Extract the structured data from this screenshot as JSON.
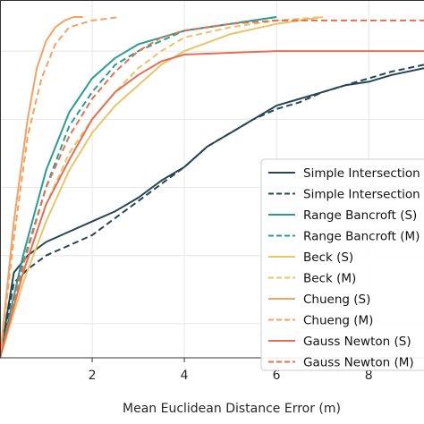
{
  "chart_data": {
    "type": "line",
    "title": "",
    "xlabel": "Mean Euclidean Distance Error (m)",
    "ylabel": "",
    "xlim": [
      0,
      9.2
    ],
    "ylim": [
      0,
      1.05
    ],
    "xticks": [
      2,
      4,
      6,
      8
    ],
    "grid": true,
    "legend_placement": "right",
    "series": [
      {
        "name": "Simple Intersection (S)",
        "color": "#264653",
        "dash": "solid",
        "x": [
          0,
          0.3,
          0.6,
          1.0,
          1.5,
          2.0,
          2.5,
          3.0,
          3.5,
          4.0,
          4.5,
          5.0,
          5.5,
          6.0,
          6.5,
          7.0,
          7.5,
          8.0,
          8.5,
          9.2
        ],
        "y": [
          0.0,
          0.25,
          0.3,
          0.34,
          0.37,
          0.4,
          0.43,
          0.47,
          0.52,
          0.56,
          0.62,
          0.66,
          0.7,
          0.74,
          0.76,
          0.78,
          0.8,
          0.81,
          0.83,
          0.85
        ]
      },
      {
        "name": "Simple Intersection (M)",
        "color": "#264653",
        "dash": "dashed",
        "x": [
          0,
          0.3,
          0.6,
          1.0,
          1.5,
          2.0,
          2.5,
          3.0,
          3.5,
          4.0,
          4.5,
          5.0,
          5.5,
          6.0,
          6.5,
          7.0,
          7.5,
          8.0,
          8.5,
          9.2
        ],
        "y": [
          0.0,
          0.22,
          0.26,
          0.3,
          0.33,
          0.36,
          0.41,
          0.46,
          0.51,
          0.56,
          0.62,
          0.66,
          0.7,
          0.73,
          0.75,
          0.78,
          0.8,
          0.82,
          0.84,
          0.86
        ]
      },
      {
        "name": "Range Bancroft (S)",
        "color": "#2a9d8f",
        "dash": "solid",
        "x": [
          0,
          0.5,
          1.0,
          1.5,
          2.0,
          2.5,
          3.0,
          3.5,
          4.0,
          5.0,
          6.0
        ],
        "y": [
          0.0,
          0.3,
          0.55,
          0.72,
          0.82,
          0.88,
          0.92,
          0.94,
          0.96,
          0.98,
          1.0
        ]
      },
      {
        "name": "Range Bancroft (M)",
        "color": "#2a9d8f",
        "dash": "dashed",
        "x": [
          0,
          0.5,
          1.0,
          1.5,
          2.0,
          2.5,
          3.0,
          3.5,
          4.0,
          5.0,
          6.0
        ],
        "y": [
          0.0,
          0.28,
          0.5,
          0.68,
          0.78,
          0.86,
          0.9,
          0.93,
          0.96,
          0.98,
          1.0
        ]
      },
      {
        "name": "Beck (S)",
        "color": "#e9c46a",
        "dash": "solid",
        "x": [
          0,
          0.5,
          1.0,
          1.5,
          2.0,
          2.5,
          3.0,
          3.5,
          4.0,
          5.0,
          6.0,
          7.0
        ],
        "y": [
          0.0,
          0.22,
          0.4,
          0.55,
          0.66,
          0.74,
          0.8,
          0.86,
          0.9,
          0.95,
          0.98,
          1.0
        ]
      },
      {
        "name": "Beck (M)",
        "color": "#e9c46a",
        "dash": "dashed",
        "x": [
          0,
          0.5,
          1.0,
          1.5,
          2.0,
          2.5,
          3.0,
          3.5,
          4.0,
          5.0,
          6.0,
          7.0
        ],
        "y": [
          0.0,
          0.25,
          0.45,
          0.6,
          0.7,
          0.78,
          0.85,
          0.9,
          0.94,
          0.97,
          0.99,
          1.0
        ]
      },
      {
        "name": "Chueng (S)",
        "color": "#f4a261",
        "dash": "solid",
        "x": [
          0,
          0.3,
          0.6,
          0.8,
          1.0,
          1.2,
          1.4,
          1.6,
          1.8
        ],
        "y": [
          0.0,
          0.4,
          0.7,
          0.85,
          0.93,
          0.97,
          0.99,
          1.0,
          1.0
        ]
      },
      {
        "name": "Chueng (M)",
        "color": "#f4a261",
        "dash": "dashed",
        "x": [
          0,
          0.3,
          0.6,
          0.9,
          1.2,
          1.5,
          2.0,
          2.6
        ],
        "y": [
          0.0,
          0.35,
          0.65,
          0.82,
          0.92,
          0.97,
          0.99,
          1.0
        ]
      },
      {
        "name": "Gauss Newton (S)",
        "color": "#e76f51",
        "dash": "solid",
        "x": [
          0,
          0.5,
          1.0,
          1.5,
          2.0,
          2.5,
          3.0,
          3.5,
          4.0,
          6.0,
          9.2
        ],
        "y": [
          0.0,
          0.25,
          0.45,
          0.58,
          0.7,
          0.78,
          0.83,
          0.87,
          0.89,
          0.9,
          0.9
        ]
      },
      {
        "name": "Gauss Newton (M)",
        "color": "#e76f51",
        "dash": "dashed",
        "x": [
          0,
          0.5,
          1.0,
          1.5,
          2.0,
          2.5,
          3.0,
          3.5,
          4.0,
          5.0,
          6.0,
          9.2
        ],
        "y": [
          0.0,
          0.27,
          0.5,
          0.65,
          0.76,
          0.84,
          0.9,
          0.94,
          0.96,
          0.98,
          0.99,
          0.99
        ]
      }
    ]
  }
}
